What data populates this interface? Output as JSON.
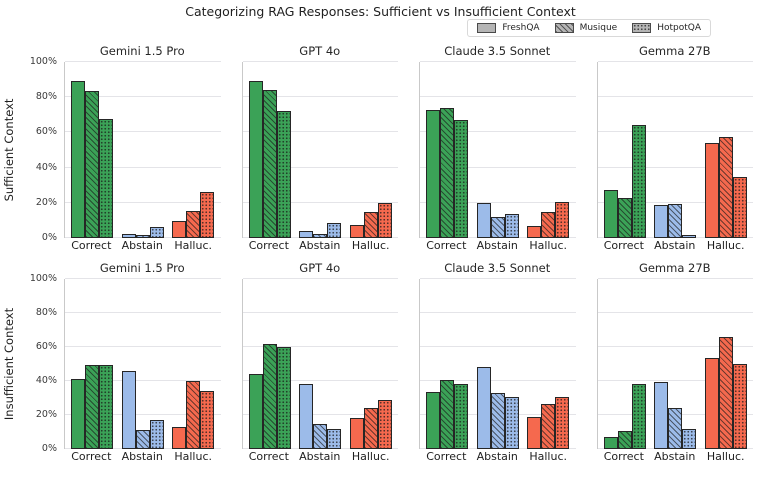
{
  "chart_data": {
    "type": "bar",
    "title": "Categorizing RAG Responses: Sufficient vs Insufficient Context",
    "categories": [
      "Correct",
      "Abstain",
      "Halluc."
    ],
    "datasets": [
      "FreshQA",
      "Musique",
      "HotpotQA"
    ],
    "dataset_hatches": [
      "solid",
      "diagonal",
      "dots"
    ],
    "category_colors": {
      "Correct": "#3ba257",
      "Abstain": "#9cbbe9",
      "Halluc.": "#f5694e"
    },
    "legend_patch_color": "#b5b5b5",
    "grid": true,
    "legend_position": "top-right",
    "ylim": [
      0,
      100
    ],
    "yticks": [
      0,
      20,
      40,
      60,
      80,
      100
    ],
    "ytick_labels": [
      "0%",
      "20%",
      "40%",
      "60%",
      "80%",
      "100%"
    ],
    "rows": [
      {
        "label": "Sufficient Context",
        "subplots": [
          {
            "title": "Gemini 1.5 Pro",
            "series": [
              {
                "name": "FreshQA",
                "values": [
                  89,
                  2,
                  9.5
                ]
              },
              {
                "name": "Musique",
                "values": [
                  83.5,
                  1.5,
                  15.5
                ]
              },
              {
                "name": "HotpotQA",
                "values": [
                  67.5,
                  6.5,
                  26
                ]
              }
            ]
          },
          {
            "title": "GPT 4o",
            "series": [
              {
                "name": "FreshQA",
                "values": [
                  89,
                  4,
                  7.5
                ]
              },
              {
                "name": "Musique",
                "values": [
                  84,
                  2,
                  15
                ]
              },
              {
                "name": "HotpotQA",
                "values": [
                  72,
                  8.5,
                  20
                ]
              }
            ]
          },
          {
            "title": "Claude 3.5 Sonnet",
            "series": [
              {
                "name": "FreshQA",
                "values": [
                  73,
                  20,
                  7
                ]
              },
              {
                "name": "Musique",
                "values": [
                  74,
                  12,
                  15
                ]
              },
              {
                "name": "HotpotQA",
                "values": [
                  67,
                  13.5,
                  20.5
                ]
              }
            ]
          },
          {
            "title": "Gemma 27B",
            "series": [
              {
                "name": "FreshQA",
                "values": [
                  27,
                  19,
                  54
                ]
              },
              {
                "name": "Musique",
                "values": [
                  23,
                  19.5,
                  57.5
                ]
              },
              {
                "name": "HotpotQA",
                "values": [
                  64,
                  1.5,
                  34.5
                ]
              }
            ]
          }
        ]
      },
      {
        "label": "Insufficient Context",
        "subplots": [
          {
            "title": "Gemini 1.5 Pro",
            "series": [
              {
                "name": "FreshQA",
                "values": [
                  41,
                  46,
                  13
                ]
              },
              {
                "name": "Musique",
                "values": [
                  49.5,
                  11,
                  40
                ]
              },
              {
                "name": "HotpotQA",
                "values": [
                  49.5,
                  17,
                  34
                ]
              }
            ]
          },
          {
            "title": "GPT 4o",
            "series": [
              {
                "name": "FreshQA",
                "values": [
                  44,
                  38.5,
                  18.5
                ]
              },
              {
                "name": "Musique",
                "values": [
                  61.5,
                  14.5,
                  24
                ]
              },
              {
                "name": "HotpotQA",
                "values": [
                  60,
                  12,
                  29
                ]
              }
            ]
          },
          {
            "title": "Claude 3.5 Sonnet",
            "series": [
              {
                "name": "FreshQA",
                "values": [
                  33.5,
                  48,
                  19
                ]
              },
              {
                "name": "Musique",
                "values": [
                  40.5,
                  33,
                  26.5
                ]
              },
              {
                "name": "HotpotQA",
                "values": [
                  38.5,
                  30.5,
                  30.5
                ]
              }
            ]
          },
          {
            "title": "Gemma 27B",
            "series": [
              {
                "name": "FreshQA",
                "values": [
                  7,
                  39.5,
                  53.5
                ]
              },
              {
                "name": "Musique",
                "values": [
                  10.5,
                  24,
                  66
                ]
              },
              {
                "name": "HotpotQA",
                "values": [
                  38,
                  12,
                  50
                ]
              }
            ]
          }
        ]
      }
    ]
  }
}
